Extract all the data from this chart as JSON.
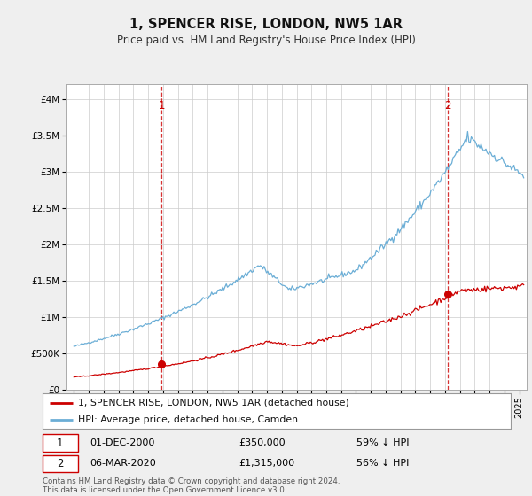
{
  "title": "1, SPENCER RISE, LONDON, NW5 1AR",
  "subtitle": "Price paid vs. HM Land Registry's House Price Index (HPI)",
  "xlim": [
    1994.5,
    2025.5
  ],
  "ylim": [
    0,
    4200000
  ],
  "yticks": [
    0,
    500000,
    1000000,
    1500000,
    2000000,
    2500000,
    3000000,
    3500000,
    4000000
  ],
  "ytick_labels": [
    "£0",
    "£500K",
    "£1M",
    "£1.5M",
    "£2M",
    "£2.5M",
    "£3M",
    "£3.5M",
    "£4M"
  ],
  "xticks": [
    1995,
    1996,
    1997,
    1998,
    1999,
    2000,
    2001,
    2002,
    2003,
    2004,
    2005,
    2006,
    2007,
    2008,
    2009,
    2010,
    2011,
    2012,
    2013,
    2014,
    2015,
    2016,
    2017,
    2018,
    2019,
    2020,
    2021,
    2022,
    2023,
    2024,
    2025
  ],
  "hpi_color": "#6baed6",
  "price_color": "#cc0000",
  "vline_color": "#cc0000",
  "purchase1_x": 2000.92,
  "purchase1_y": 350000,
  "purchase1_date": "01-DEC-2000",
  "purchase1_price": "£350,000",
  "purchase1_hpi": "59% ↓ HPI",
  "purchase2_x": 2020.17,
  "purchase2_y": 1315000,
  "purchase2_date": "06-MAR-2020",
  "purchase2_price": "£1,315,000",
  "purchase2_hpi": "56% ↓ HPI",
  "legend_label1": "1, SPENCER RISE, LONDON, NW5 1AR (detached house)",
  "legend_label2": "HPI: Average price, detached house, Camden",
  "footer": "Contains HM Land Registry data © Crown copyright and database right 2024.\nThis data is licensed under the Open Government Licence v3.0.",
  "bg_color": "#efefef",
  "plot_bg_color": "#ffffff"
}
